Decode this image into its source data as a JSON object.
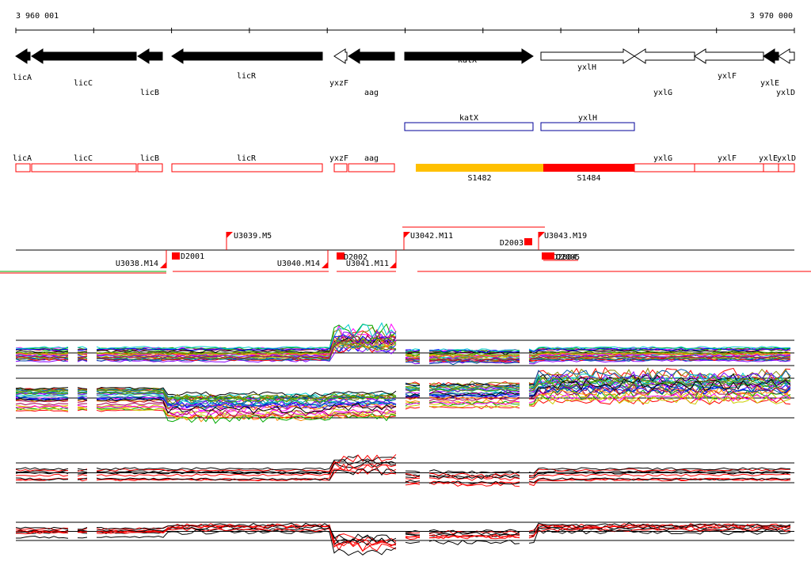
{
  "ruler": {
    "start_label": "3 960 001",
    "end_label": "3 970 000"
  },
  "genes": [
    {
      "name": "licA",
      "strand": "-",
      "style": "filled"
    },
    {
      "name": "licC",
      "strand": "-",
      "style": "filled"
    },
    {
      "name": "licB",
      "strand": "-",
      "style": "filled"
    },
    {
      "name": "licR",
      "strand": "-",
      "style": "filled"
    },
    {
      "name": "yxzF",
      "strand": "-",
      "style": "open"
    },
    {
      "name": "aag",
      "strand": "-",
      "style": "filled"
    },
    {
      "name": "katX",
      "strand": "+",
      "style": "filled"
    },
    {
      "name": "yxlH",
      "strand": "+",
      "style": "open"
    },
    {
      "name": "yxlG",
      "strand": "-",
      "style": "open"
    },
    {
      "name": "yxlF",
      "strand": "-",
      "style": "open"
    },
    {
      "name": "yxlE",
      "strand": "-",
      "style": "filled"
    },
    {
      "name": "yxlD",
      "strand": "-",
      "style": "open"
    }
  ],
  "blue_features": [
    {
      "name": "katX"
    },
    {
      "name": "yxlH"
    }
  ],
  "red_features": [
    {
      "name": "licA"
    },
    {
      "name": "licC"
    },
    {
      "name": "licB"
    },
    {
      "name": "licR"
    },
    {
      "name": "yxzF"
    },
    {
      "name": "aag"
    },
    {
      "name": "yxlG"
    },
    {
      "name": "yxlF"
    },
    {
      "name": "yxlE"
    },
    {
      "name": "yxlD"
    }
  ],
  "segments": [
    {
      "name": "S1482",
      "color": "#ffc000"
    },
    {
      "name": "S1484",
      "color": "#ff0000"
    }
  ],
  "promoters": [
    {
      "name": "U3039.M5",
      "dir": "up"
    },
    {
      "name": "U3042.M11",
      "dir": "up"
    },
    {
      "name": "U3043.M19",
      "dir": "up"
    },
    {
      "name": "U3038.M14",
      "dir": "down"
    },
    {
      "name": "U3040.M14",
      "dir": "down"
    },
    {
      "name": "U3041.M11",
      "dir": "down"
    }
  ],
  "terminators": [
    {
      "name": "D2001"
    },
    {
      "name": "D2002"
    },
    {
      "name": "D2003"
    },
    {
      "name": "D2004"
    },
    {
      "name": "D2005"
    }
  ],
  "colors": {
    "feature_red": "#ff0000",
    "feature_blue": "#000099",
    "segment_yellow": "#ffc000",
    "axis": "#000000"
  }
}
